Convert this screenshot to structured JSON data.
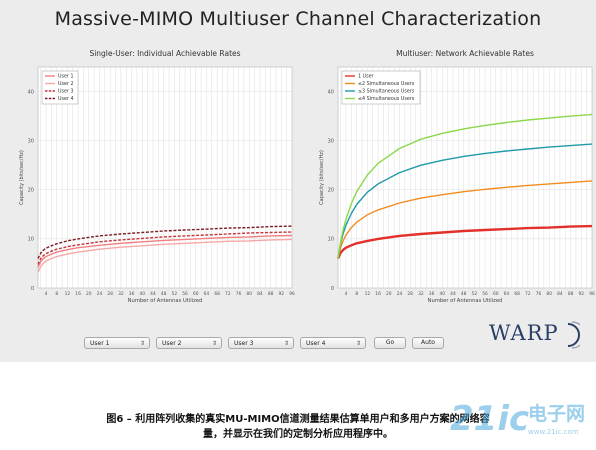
{
  "figure": {
    "title": "Massive-MIMO Multiuser Channel Characterization",
    "caption_line1": "图6 – 利用阵列收集的真实MU-MIMO信道测量结果估算单用户和多用户方案的网络容",
    "caption_line2": "量，并显示在我们的定制分析应用程序中。"
  },
  "controls": {
    "dropdowns": [
      "User 1",
      "User 2",
      "User 3",
      "User 4"
    ],
    "go_label": "Go",
    "auto_label": "Auto"
  },
  "logo": {
    "text": "WARP"
  },
  "watermark": {
    "text": "21ic",
    "cn": "电子网",
    "url": "www.21ic.com"
  },
  "chart_data": [
    {
      "type": "line",
      "title": "Single-User: Individual Achievable Rates",
      "xlabel": "Number of Antennas Utilized",
      "ylabel": "Capacity (bits/sec/Hz)",
      "xlim": [
        1,
        96
      ],
      "ylim": [
        0,
        45
      ],
      "yticks": [
        0,
        10,
        20,
        30,
        40
      ],
      "xticks": [
        4,
        8,
        12,
        16,
        20,
        24,
        28,
        32,
        36,
        40,
        44,
        48,
        52,
        56,
        60,
        64,
        68,
        72,
        76,
        80,
        84,
        88,
        92,
        96
      ],
      "legend": "top-left",
      "grid": true,
      "series": [
        {
          "name": "User 1",
          "color": "#f07f82",
          "dash": false,
          "x": [
            1,
            2,
            3,
            4,
            6,
            8,
            12,
            16,
            24,
            32,
            40,
            48,
            56,
            64,
            72,
            80,
            88,
            96
          ],
          "y": [
            4.2,
            5.4,
            6.0,
            6.4,
            6.9,
            7.3,
            7.8,
            8.2,
            8.7,
            9.1,
            9.4,
            9.7,
            9.9,
            10.1,
            10.3,
            10.4,
            10.6,
            10.7
          ]
        },
        {
          "name": "User 2",
          "color": "#f5a8a8",
          "dash": false,
          "x": [
            1,
            2,
            3,
            4,
            6,
            8,
            12,
            16,
            24,
            32,
            40,
            48,
            56,
            64,
            72,
            80,
            88,
            96
          ],
          "y": [
            3.2,
            4.4,
            5.0,
            5.5,
            6.0,
            6.4,
            6.9,
            7.3,
            7.9,
            8.3,
            8.6,
            8.9,
            9.1,
            9.3,
            9.5,
            9.6,
            9.8,
            9.9
          ]
        },
        {
          "name": "User 3",
          "color": "#c4333a",
          "dash": true,
          "x": [
            1,
            2,
            3,
            4,
            6,
            8,
            12,
            16,
            24,
            32,
            40,
            48,
            56,
            64,
            72,
            80,
            88,
            96
          ],
          "y": [
            4.8,
            6.0,
            6.6,
            7.0,
            7.5,
            7.9,
            8.4,
            8.8,
            9.4,
            9.8,
            10.1,
            10.4,
            10.6,
            10.8,
            11.0,
            11.2,
            11.3,
            11.4
          ]
        },
        {
          "name": "User 4",
          "color": "#7a1c24",
          "dash": true,
          "x": [
            1,
            2,
            3,
            4,
            6,
            8,
            12,
            16,
            24,
            32,
            40,
            48,
            56,
            64,
            72,
            80,
            88,
            96
          ],
          "y": [
            6.0,
            7.1,
            7.7,
            8.1,
            8.6,
            9.0,
            9.6,
            10.0,
            10.6,
            11.0,
            11.3,
            11.6,
            11.8,
            12.0,
            12.2,
            12.3,
            12.5,
            12.6
          ]
        }
      ]
    },
    {
      "type": "line",
      "title": "Multiuser: Network Achievable Rates",
      "xlabel": "Number of Antennas Utilized",
      "ylabel": "Capacity (bits/sec/Hz)",
      "xlim": [
        1,
        96
      ],
      "ylim": [
        0,
        45
      ],
      "yticks": [
        0,
        10,
        20,
        30,
        40
      ],
      "xticks": [
        4,
        8,
        12,
        16,
        20,
        24,
        28,
        32,
        36,
        40,
        44,
        48,
        52,
        56,
        60,
        64,
        68,
        72,
        76,
        80,
        84,
        88,
        92,
        96
      ],
      "legend": "top-left",
      "grid": true,
      "series": [
        {
          "name": "1 User",
          "color": "#e2312b",
          "dash": false,
          "x": [
            1,
            2,
            3,
            4,
            6,
            8,
            12,
            16,
            24,
            32,
            40,
            48,
            56,
            64,
            72,
            80,
            88,
            96
          ],
          "y": [
            6.0,
            7.2,
            7.8,
            8.2,
            8.7,
            9.1,
            9.6,
            10.0,
            10.6,
            11.0,
            11.3,
            11.6,
            11.8,
            12.0,
            12.2,
            12.3,
            12.5,
            12.6
          ]
        },
        {
          "name": "≤2 Simultaneous Users",
          "color": "#f28c1e",
          "dash": false,
          "x": [
            1,
            2,
            3,
            4,
            6,
            8,
            12,
            16,
            24,
            32,
            40,
            48,
            56,
            64,
            72,
            80,
            88,
            96
          ],
          "y": [
            6.0,
            8.3,
            9.7,
            10.8,
            12.3,
            13.4,
            14.9,
            15.9,
            17.3,
            18.3,
            19.0,
            19.6,
            20.1,
            20.5,
            20.9,
            21.2,
            21.5,
            21.8
          ]
        },
        {
          "name": "≤3 Simultaneous Users",
          "color": "#1f9aa8",
          "dash": false,
          "x": [
            1,
            2,
            3,
            4,
            6,
            8,
            12,
            16,
            24,
            32,
            40,
            48,
            56,
            64,
            72,
            80,
            88,
            96
          ],
          "y": [
            6.0,
            9.2,
            11.2,
            12.8,
            15.2,
            17.0,
            19.5,
            21.2,
            23.5,
            25.0,
            26.0,
            26.8,
            27.4,
            27.9,
            28.3,
            28.7,
            29.0,
            29.3
          ]
        },
        {
          "name": "≤4 Simultaneous Users",
          "color": "#8ad84a",
          "dash": false,
          "x": [
            1,
            2,
            3,
            4,
            6,
            8,
            12,
            16,
            24,
            32,
            40,
            48,
            56,
            64,
            72,
            80,
            88,
            96
          ],
          "y": [
            6.0,
            9.6,
            12.0,
            14.0,
            17.2,
            19.6,
            23.0,
            25.4,
            28.4,
            30.3,
            31.5,
            32.4,
            33.1,
            33.7,
            34.2,
            34.6,
            35.0,
            35.3
          ]
        }
      ]
    }
  ]
}
